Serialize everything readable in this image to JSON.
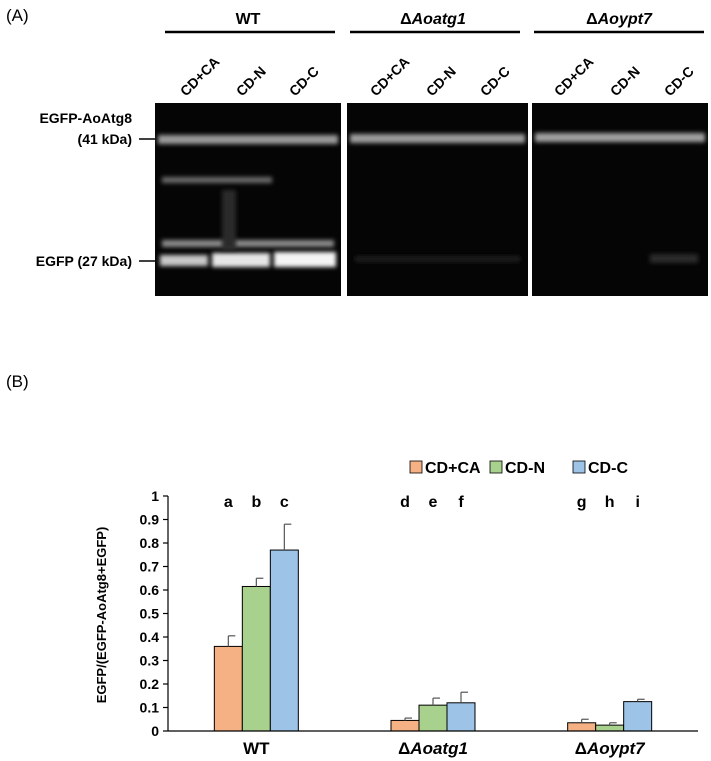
{
  "panel_a": {
    "label": "(A)",
    "groups": [
      {
        "name_prefix": "",
        "name": "WT",
        "lanes": [
          "CD+CA",
          "CD-N",
          "CD-C"
        ]
      },
      {
        "name_prefix": "Δ",
        "name": "Aoatg1",
        "lanes": [
          "CD+CA",
          "CD-N",
          "CD-C"
        ]
      },
      {
        "name_prefix": "Δ",
        "name": "Aoypt7",
        "lanes": [
          "CD+CA",
          "CD-N",
          "CD-C"
        ]
      }
    ],
    "band_labels": {
      "fusion_line1": "EGFP-AoAtg8",
      "fusion_line2": "(41 kDa)",
      "free": "EGFP (27 kDa)"
    }
  },
  "panel_b": {
    "label": "(B)"
  },
  "chart_data": {
    "type": "bar",
    "ylabel": "EGFP/(EGFP-AoAtg8+EGFP)",
    "xlabel": "",
    "ylim": [
      0,
      1
    ],
    "yticks": [
      "0",
      "0.1",
      "0.2",
      "0.3",
      "0.4",
      "0.5",
      "0.6",
      "0.7",
      "0.8",
      "0.9",
      "1"
    ],
    "categories": [
      {
        "prefix": "",
        "name": "WT"
      },
      {
        "prefix": "Δ",
        "name": "Aoatg1"
      },
      {
        "prefix": "Δ",
        "name": "Aoypt7"
      }
    ],
    "legend_position": "top-right",
    "series": [
      {
        "name": "CD+CA",
        "color": "#f5b183",
        "values": [
          0.36,
          0.045,
          0.035
        ],
        "errors": [
          0.045,
          0.01,
          0.015
        ],
        "letters": [
          "a",
          "d",
          "g"
        ]
      },
      {
        "name": "CD-N",
        "color": "#a9d18e",
        "values": [
          0.615,
          0.11,
          0.025
        ],
        "errors": [
          0.035,
          0.03,
          0.01
        ],
        "letters": [
          "b",
          "e",
          "h"
        ]
      },
      {
        "name": "CD-C",
        "color": "#9dc3e6",
        "values": [
          0.77,
          0.12,
          0.125
        ],
        "errors": [
          0.11,
          0.045,
          0.01
        ],
        "letters": [
          "c",
          "f",
          "i"
        ]
      }
    ]
  }
}
